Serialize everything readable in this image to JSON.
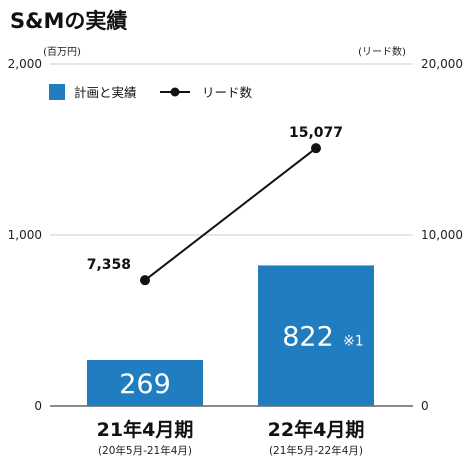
{
  "chart_data": {
    "type": "bar",
    "title": "S&Mの実績",
    "left_axis": {
      "unit": "(百万円)",
      "ticks": [
        "0",
        "1,000",
        "2,000"
      ],
      "ylim": [
        0,
        2000
      ]
    },
    "right_axis": {
      "unit": "(リード数)",
      "ticks": [
        "0",
        "10,000",
        "20,000"
      ],
      "ylim": [
        0,
        20000
      ]
    },
    "legend": {
      "bar_label": "計画と実績",
      "line_label": "リード数"
    },
    "categories": [
      {
        "label": "21年4月期",
        "sublabel": "(20年5月-21年4月)"
      },
      {
        "label": "22年4月期",
        "sublabel": "(21年5月-22年4月)"
      }
    ],
    "series": [
      {
        "type": "bar",
        "axis": "left",
        "values": [
          269,
          822
        ],
        "labels": [
          "269",
          "822"
        ],
        "notes": [
          "",
          "※1"
        ],
        "color": "#1f7dc0"
      },
      {
        "type": "line",
        "axis": "right",
        "values": [
          7358,
          15077
        ],
        "labels": [
          "7,358",
          "15,077"
        ],
        "color": "#111111"
      }
    ]
  }
}
